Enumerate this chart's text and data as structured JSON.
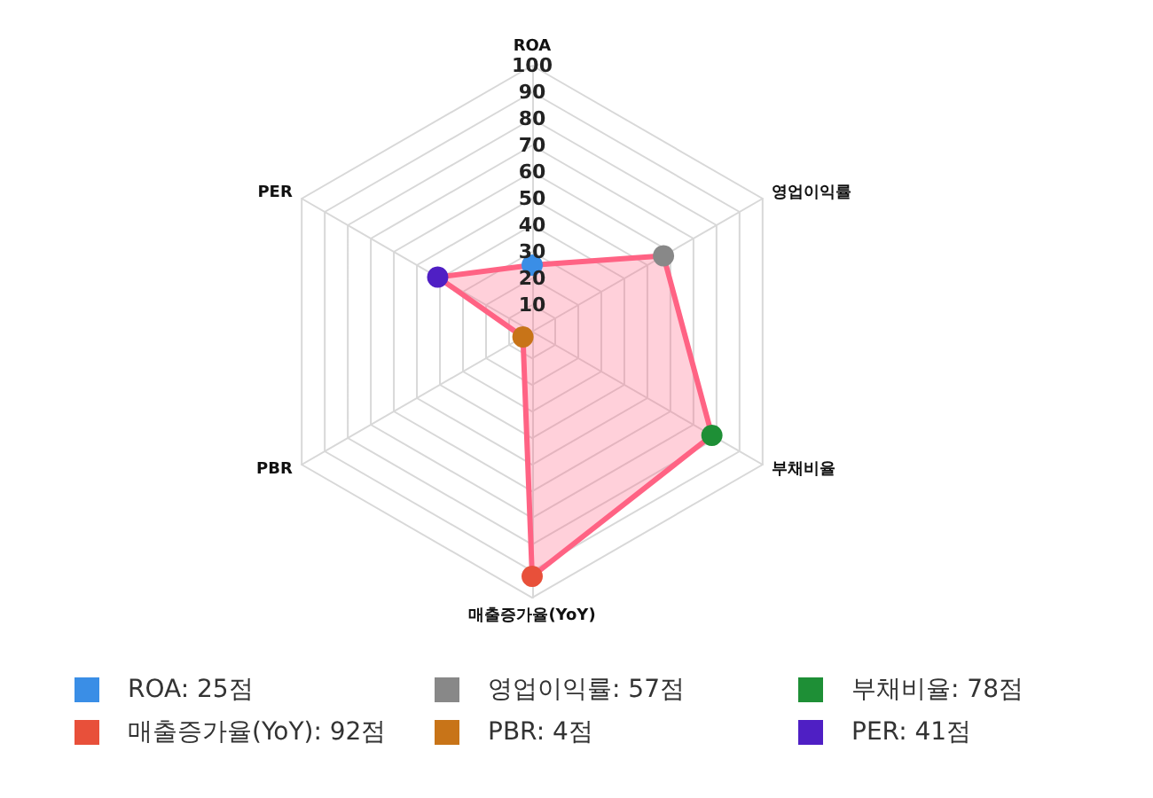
{
  "chart_data": {
    "type": "radar",
    "categories": [
      "ROA",
      "영업이익률",
      "부채비율",
      "매출증가율(YoY)",
      "PBR",
      "PER"
    ],
    "series": [
      {
        "color": "#ff6384",
        "colors": [
          "#3a8ee6",
          "#888888",
          "#1e8f36",
          "#e8503a",
          "#c87418",
          "#4f1fc4"
        ],
        "values": [
          25,
          57,
          78,
          92,
          4,
          41
        ]
      }
    ],
    "ylim": [
      0,
      100
    ],
    "yticks": [
      10,
      20,
      30,
      40,
      50,
      60,
      70,
      80,
      90,
      100
    ],
    "grid": true,
    "marker": "circle",
    "annotations": [
      "ROA: 25점",
      "영업이익률: 57점",
      "부채비율: 78점",
      "매출증가율(YoY): 92점",
      "PBR: 4점",
      "PER: 41점"
    ]
  }
}
